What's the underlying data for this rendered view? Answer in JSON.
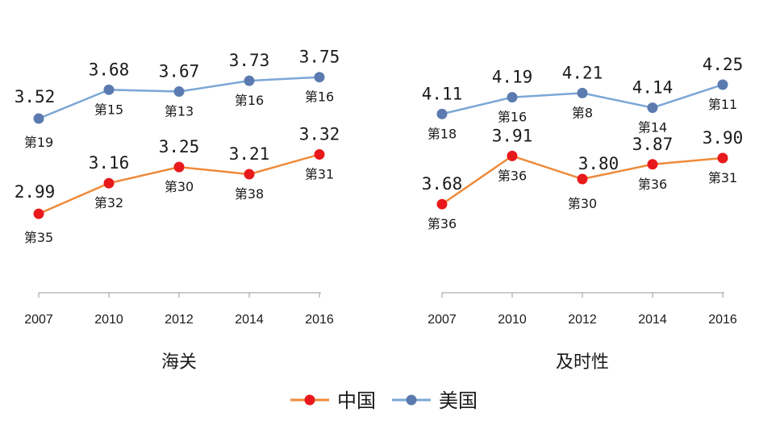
{
  "chart_data": [
    {
      "type": "line",
      "title": "海关",
      "x": [
        "2007",
        "2010",
        "2012",
        "2014",
        "2016"
      ],
      "ylim": [
        2.6,
        4.0
      ],
      "series": [
        {
          "name": "美国",
          "values": [
            3.52,
            3.68,
            3.67,
            3.73,
            3.75
          ],
          "value_labels": [
            "3.52",
            "3.68",
            "3.67",
            "3.73",
            "3.75"
          ],
          "ranks": [
            "第19",
            "第15",
            "第13",
            "第16",
            "第16"
          ]
        },
        {
          "name": "中国",
          "values": [
            2.99,
            3.16,
            3.25,
            3.21,
            3.32
          ],
          "value_labels": [
            "2.99",
            "3.16",
            "3.25",
            "3.21",
            "3.32"
          ],
          "ranks": [
            "第35",
            "第32",
            "第30",
            "第38",
            "第31"
          ]
        }
      ]
    },
    {
      "type": "line",
      "title": "及时性",
      "x": [
        "2007",
        "2010",
        "2012",
        "2014",
        "2016"
      ],
      "ylim": [
        3.3,
        4.5
      ],
      "series": [
        {
          "name": "美国",
          "values": [
            4.11,
            4.19,
            4.21,
            4.14,
            4.25
          ],
          "value_labels": [
            "4.11",
            "4.19",
            "4.21",
            "4.14",
            "4.25"
          ],
          "ranks": [
            "第18",
            "第16",
            "第8",
            "第14",
            "第11"
          ]
        },
        {
          "name": "中国",
          "values": [
            3.68,
            3.91,
            3.8,
            3.87,
            3.9
          ],
          "value_labels": [
            "3.68",
            "3.91",
            "3.80",
            "3.87",
            "3.90"
          ],
          "ranks": [
            "第36",
            "第36",
            "第30",
            "第36",
            "第31"
          ]
        }
      ]
    }
  ],
  "legend": {
    "position": "bottom",
    "items": [
      {
        "label": "中国",
        "color": "#e8191b"
      },
      {
        "label": "美国",
        "color": "#5b7bb0"
      }
    ]
  },
  "colors": {
    "china_line": "#ee8a3a",
    "china_marker": "#e8191b",
    "usa_line": "#7ba7d6",
    "usa_marker": "#5b7bb0"
  }
}
